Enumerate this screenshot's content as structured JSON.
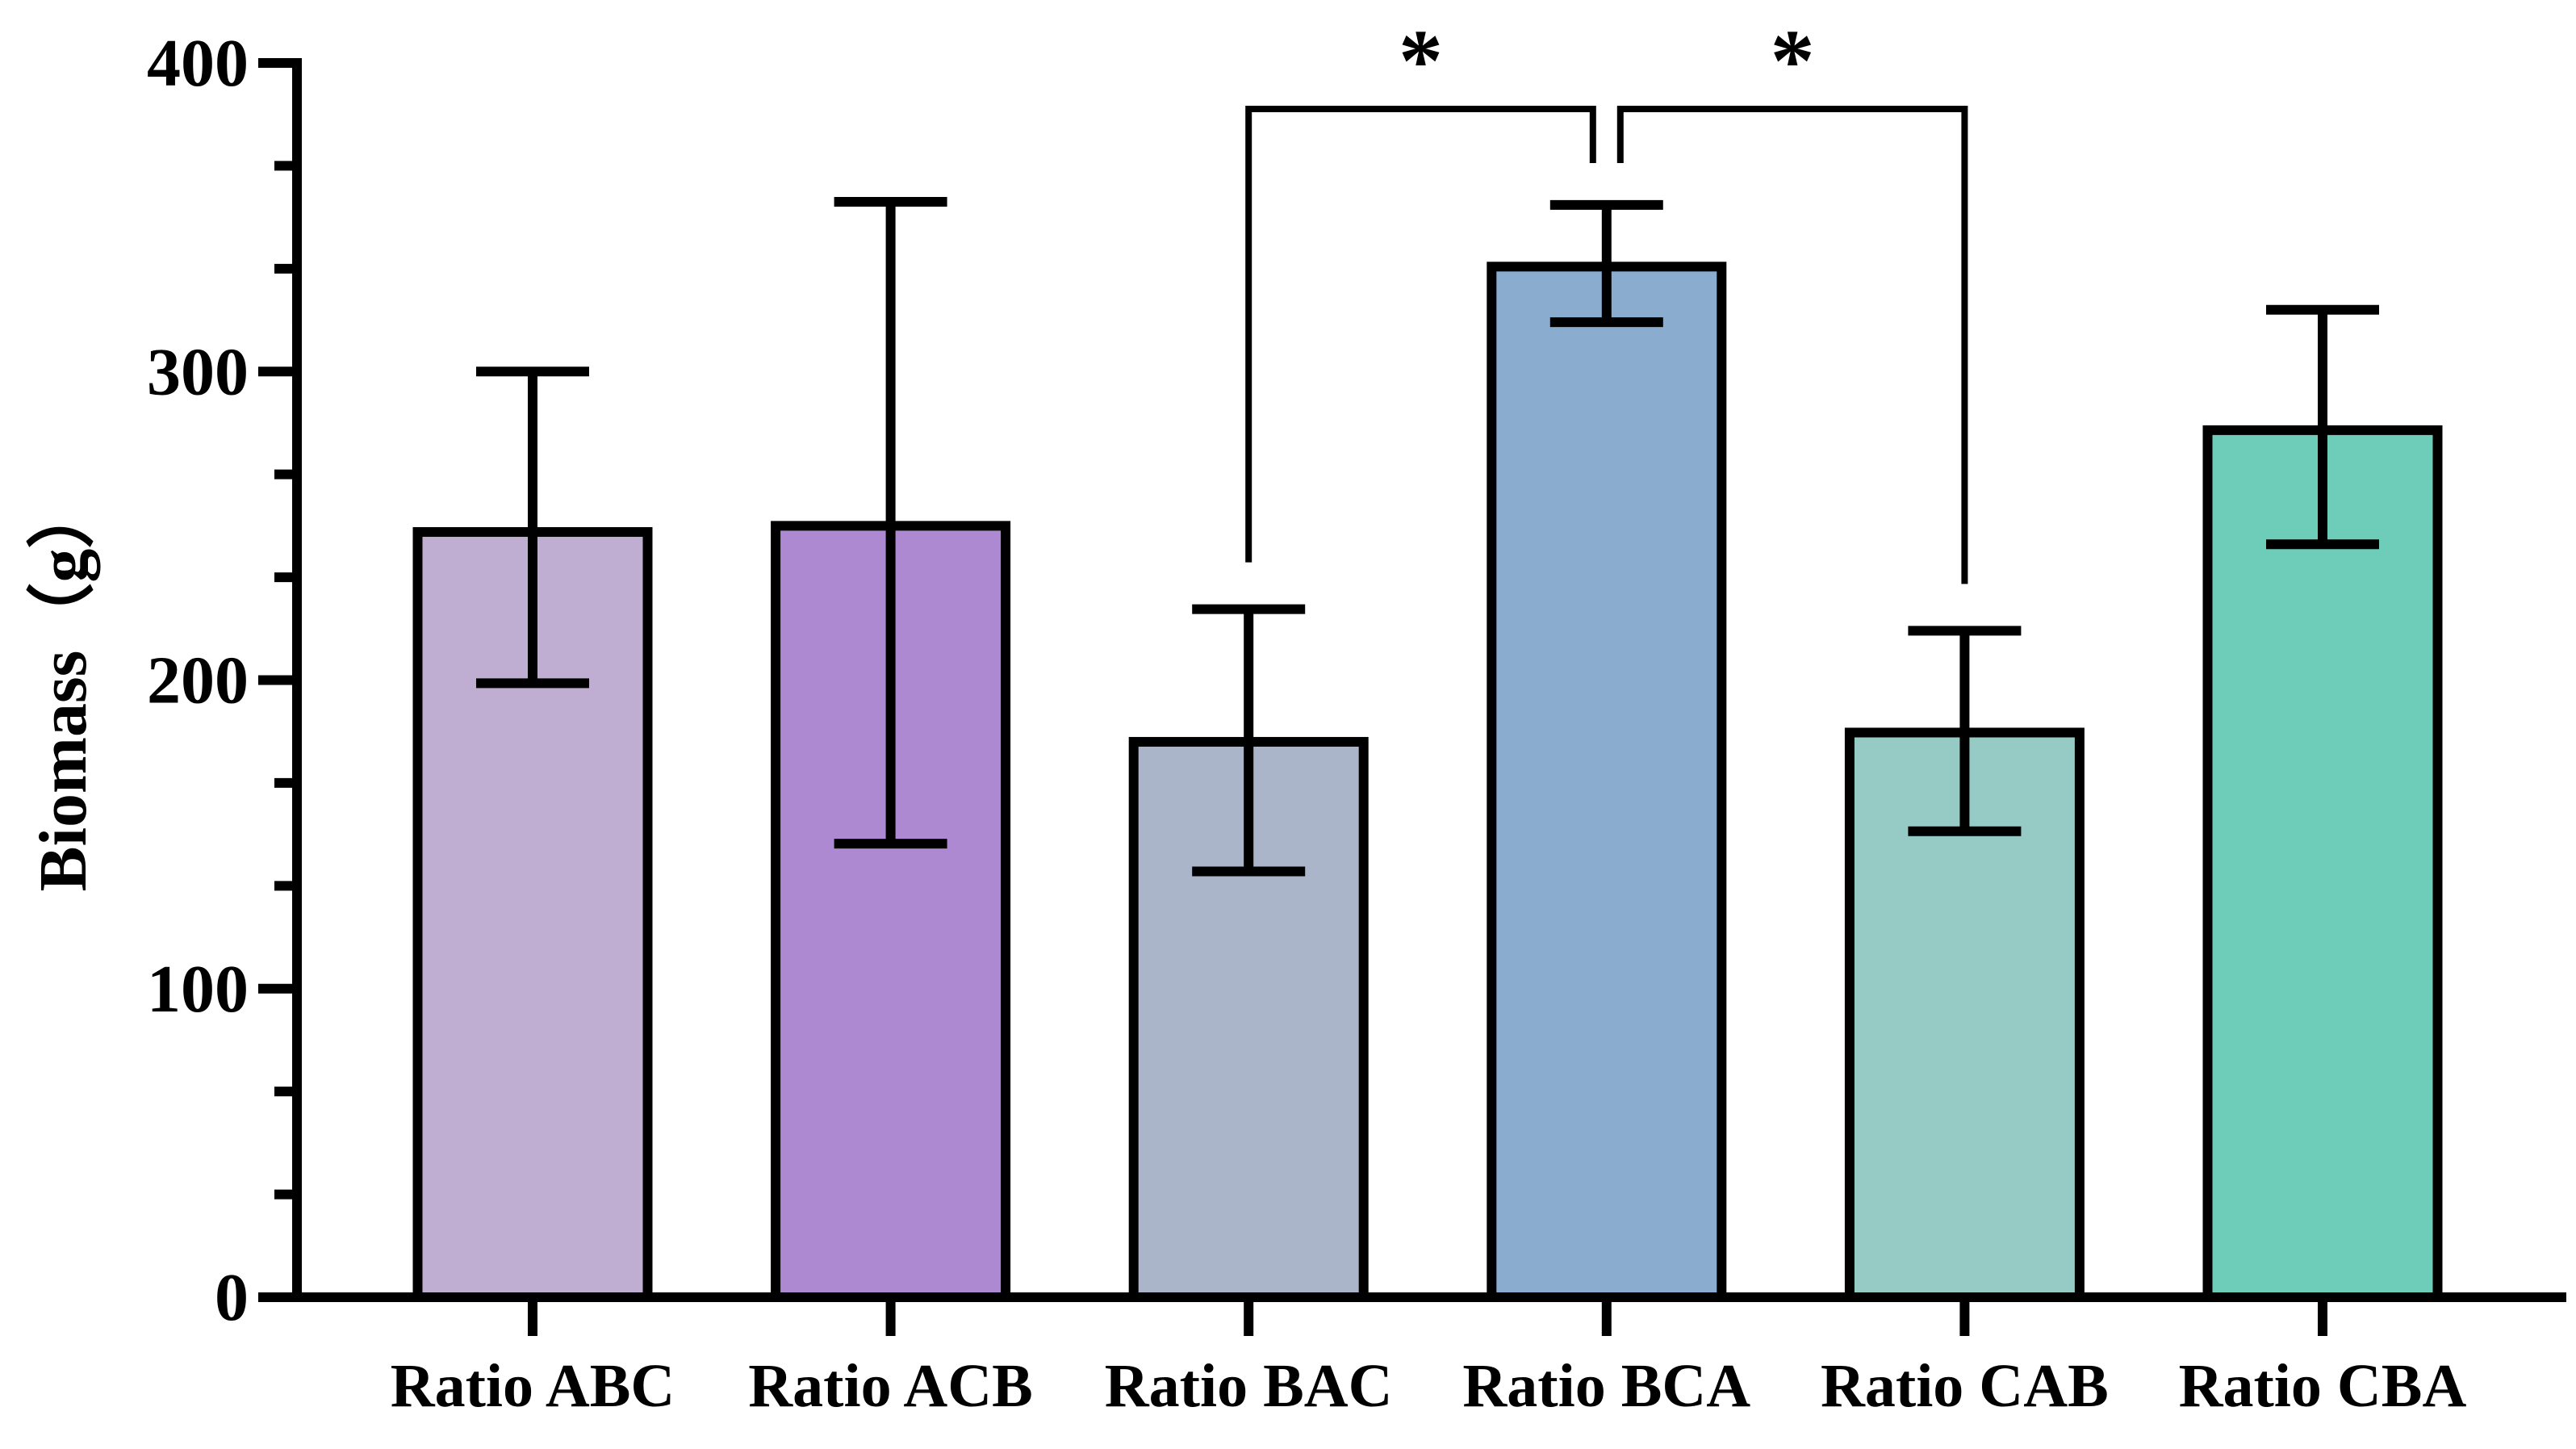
{
  "chart_data": {
    "type": "bar",
    "title": "",
    "xlabel": "",
    "ylabel": "Biomass（g）",
    "ylim": [
      0,
      400
    ],
    "yticks": [
      0,
      100,
      200,
      300,
      400
    ],
    "y_minor_step": 33.333,
    "grid": false,
    "legend": "none",
    "categories": [
      "Ratio ABC",
      "Ratio ACB",
      "Ratio BAC",
      "Ratio BCA",
      "Ratio CAB",
      "Ratio CBA"
    ],
    "values": [
      248,
      250,
      180,
      334,
      183,
      281
    ],
    "error_low": [
      199,
      147,
      138,
      316,
      151,
      244
    ],
    "error_high": [
      300,
      355,
      223,
      354,
      216,
      320
    ],
    "colors": [
      "#bfaed1",
      "#ad89d1",
      "#aab5ca",
      "#8aacce",
      "#96cbc5",
      "#6ecdb9"
    ],
    "significance": [
      {
        "from": 2,
        "to": 3,
        "label": "*"
      },
      {
        "from": 3,
        "to": 4,
        "label": "*"
      }
    ]
  }
}
